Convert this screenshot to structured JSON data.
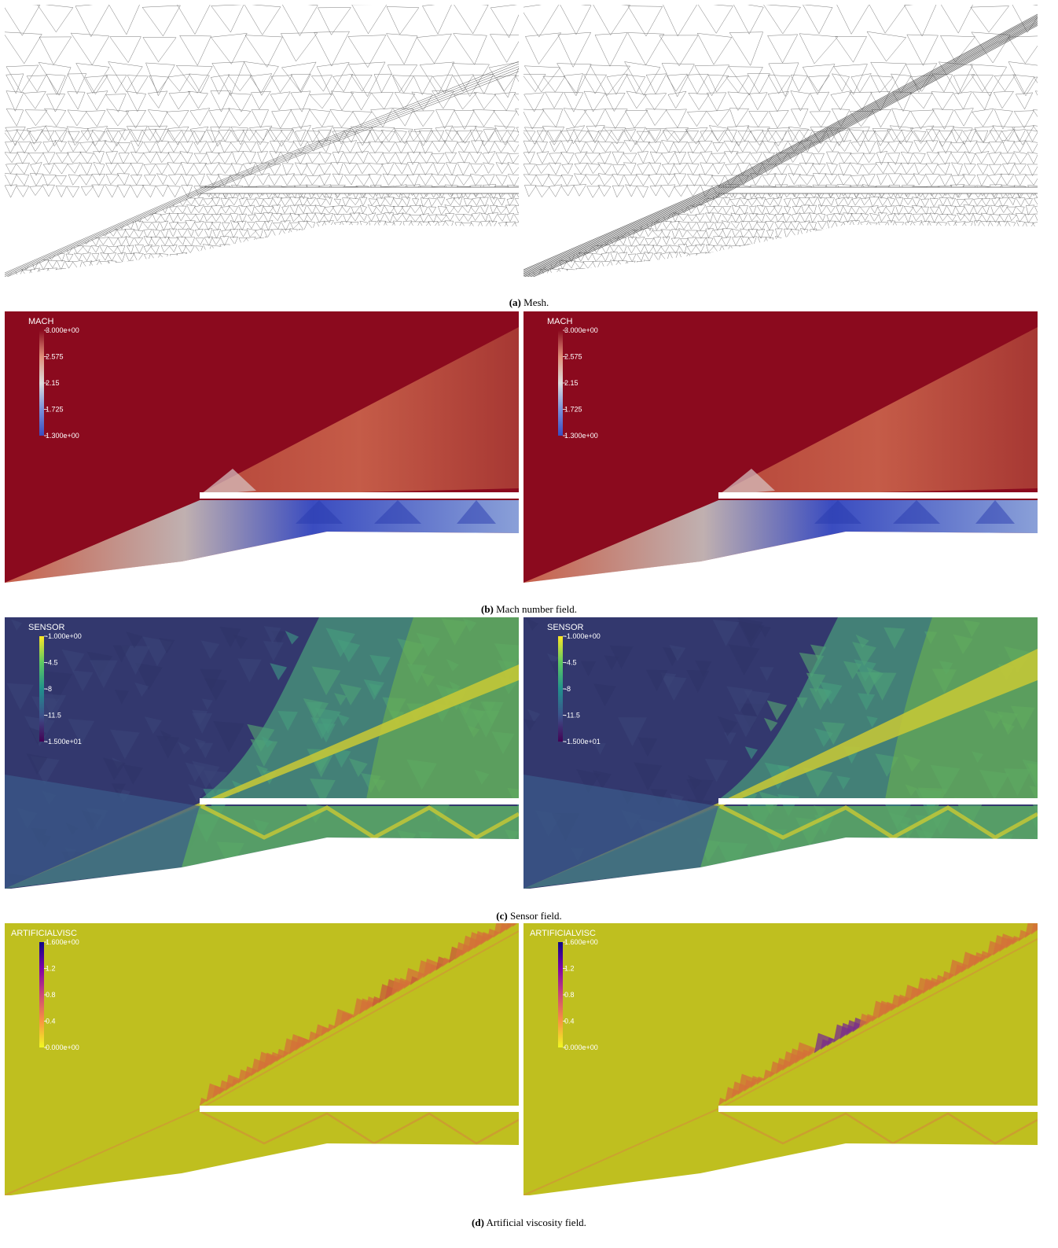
{
  "captions": {
    "a": {
      "label": "(a)",
      "text": "Mesh."
    },
    "b": {
      "label": "(b)",
      "text": "Mach number field."
    },
    "c": {
      "label": "(c)",
      "text": "Sensor field."
    },
    "d": {
      "label": "(d)",
      "text": "Artificial viscosity field."
    }
  },
  "colorbars": {
    "mach": {
      "title": "MACH",
      "ticks": [
        "3.000e+00",
        "2.575",
        "2.15",
        "1.725",
        "1.300e+00"
      ],
      "colors": [
        "#8b0a1e",
        "#e0907a",
        "#dcdcdc",
        "#7b90d8",
        "#3a4cc0"
      ]
    },
    "sensor": {
      "title": "SENSOR",
      "ticks": [
        "-1.000e+00",
        "-4.5",
        "-8",
        "-11.5",
        "-1.500e+01"
      ],
      "colors": [
        "#fde725",
        "#5ec962",
        "#21918c",
        "#3b528b",
        "#440154"
      ]
    },
    "visc": {
      "title": "ARTIFICIALVISC",
      "ticks": [
        "1.600e+00",
        "1.2",
        "0.8",
        "0.4",
        "0.000e+00"
      ],
      "colors": [
        "#0d0887",
        "#7e03a8",
        "#cc4778",
        "#f89540",
        "#f0f921"
      ]
    }
  },
  "field_colors": {
    "mach_free": "#8b0a1e",
    "mach_post": "#c8604a",
    "mach_inner": "#5068c8",
    "sensor_low": "#33386e",
    "sensor_mid": "#3f9a86",
    "sensor_high": "#c9c935",
    "visc_bg": "#bfbf1f",
    "visc_hi": "#d4703a",
    "visc_peak": "#7a2d8c"
  }
}
